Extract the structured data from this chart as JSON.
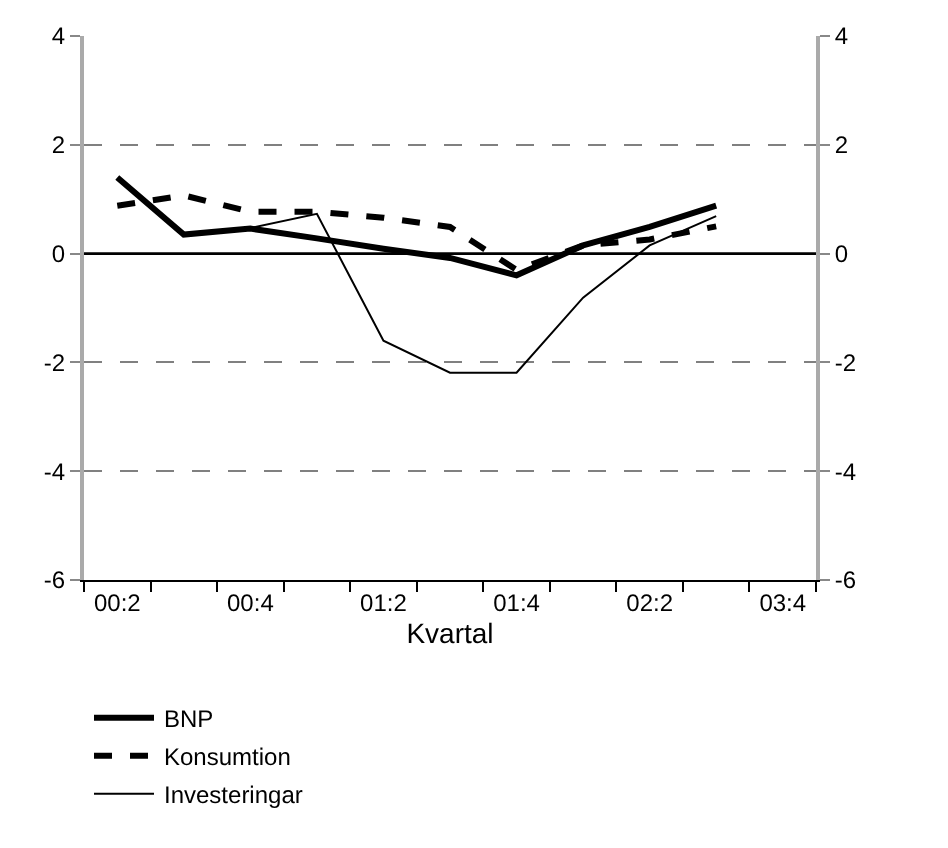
{
  "chart_data": {
    "type": "line",
    "xlabel": "Kvartal",
    "categories": [
      "00:2",
      null,
      "00:4",
      null,
      "01:2",
      null,
      "01:4",
      null,
      "02:2",
      null,
      "03:4"
    ],
    "series": [
      {
        "name": "BNP",
        "color": "#000000",
        "line_style": "solid",
        "values": [
          1.4,
          0.35,
          0.46,
          0.28,
          0.09,
          -0.08,
          -0.4,
          0.15,
          0.49,
          0.88,
          null
        ]
      },
      {
        "name": "Konsumtion",
        "color": "#000000",
        "line_style": "dashed",
        "values": [
          0.88,
          1.07,
          0.77,
          0.77,
          0.66,
          0.49,
          -0.3,
          0.15,
          0.26,
          0.5,
          null
        ]
      },
      {
        "name": "Investeringar",
        "color": "#000000",
        "line_style": "solid",
        "values": [
          null,
          null,
          0.47,
          0.73,
          -1.6,
          -2.19,
          -2.19,
          -0.81,
          0.15,
          0.69,
          null
        ]
      }
    ],
    "ylim": [
      -6,
      4
    ],
    "yticks": [
      -6,
      -4,
      -2,
      0,
      2,
      4
    ],
    "y2lim": [
      -6,
      4
    ],
    "y2ticks": [
      -6,
      -4,
      -2,
      0,
      2,
      4
    ],
    "ref_lines": [
      {
        "axis": "y",
        "value": 0,
        "color": "#000000"
      }
    ],
    "grid": "y",
    "legend": "bottom",
    "marker": "none"
  }
}
